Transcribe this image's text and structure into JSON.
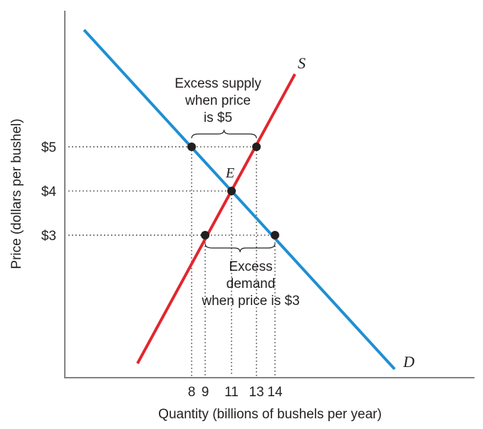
{
  "chart_data": {
    "type": "line",
    "title": "",
    "xlabel": "Quantity (billions of bushels per year)",
    "ylabel": "Price (dollars per bushel)",
    "xlim": [
      0,
      25
    ],
    "ylim": [
      0,
      7
    ],
    "x_ticks": [
      {
        "value": 8,
        "label": "8"
      },
      {
        "value": 9,
        "label": "9"
      },
      {
        "value": 11,
        "label": "11"
      },
      {
        "value": 13,
        "label": "13"
      },
      {
        "value": 14,
        "label": "14"
      }
    ],
    "y_ticks": [
      {
        "value": 5,
        "label": "$5"
      },
      {
        "value": 4,
        "label": "$4"
      },
      {
        "value": 3,
        "label": "$3"
      }
    ],
    "series": [
      {
        "name": "S",
        "color": "#e2262d",
        "points": [
          [
            5.8,
            0.3
          ],
          [
            18.1,
            6.6
          ]
        ]
      },
      {
        "name": "D",
        "color": "#1f8fd2",
        "points": [
          [
            1.6,
            7.5
          ],
          [
            25.8,
            0.2
          ]
        ]
      }
    ],
    "points": [
      {
        "x": 8,
        "y": 5
      },
      {
        "x": 13,
        "y": 5
      },
      {
        "x": 11,
        "y": 4,
        "label": "E"
      },
      {
        "x": 9,
        "y": 3
      },
      {
        "x": 14,
        "y": 3
      }
    ],
    "guides": [
      {
        "x": 8,
        "y": 5
      },
      {
        "x": 13,
        "y": 5
      },
      {
        "x": 11,
        "y": 4
      },
      {
        "x": 9,
        "y": 3
      },
      {
        "x": 14,
        "y": 3
      }
    ],
    "annotations": [
      {
        "id": "excess-supply",
        "from": 8,
        "to": 13,
        "y": 5,
        "side": "above",
        "lines": [
          "Excess supply",
          "when price",
          "is $5"
        ]
      },
      {
        "id": "excess-demand",
        "from": 9,
        "to": 14,
        "y": 3,
        "side": "below",
        "lines": [
          "Excess",
          "demand",
          "when price is $3"
        ]
      }
    ]
  }
}
